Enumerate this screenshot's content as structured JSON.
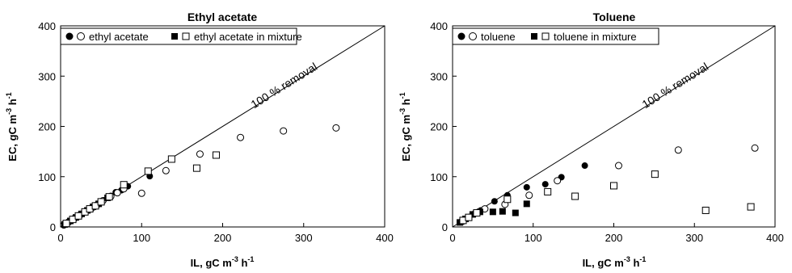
{
  "chart_data": [
    {
      "type": "scatter",
      "title": "Ethyl acetate",
      "xlabel": "IL, gC m-3 h-1",
      "ylabel": "EC, gC m-3 h-1",
      "xlim": [
        0,
        400
      ],
      "ylim": [
        0,
        400
      ],
      "xticks": [
        "0",
        "100",
        "200",
        "300",
        "400"
      ],
      "yticks": [
        "0",
        "100",
        "200",
        "300",
        "400"
      ],
      "grid": false,
      "legend_position": "top-left",
      "reference_line": {
        "label": "100 % removal",
        "x": [
          0,
          400
        ],
        "y": [
          0,
          400
        ]
      },
      "series": [
        {
          "name": "ethyl acetate",
          "marker": "filled-circle",
          "points": [
            [
              4,
              4
            ],
            [
              9,
              9
            ],
            [
              14,
              14
            ],
            [
              20,
              20
            ],
            [
              27,
              27
            ],
            [
              33,
              33
            ],
            [
              40,
              39
            ],
            [
              46,
              45
            ],
            [
              53,
              53
            ],
            [
              60,
              59
            ],
            [
              68,
              69
            ],
            [
              75,
              73
            ],
            [
              83,
              81
            ],
            [
              110,
              101
            ]
          ]
        },
        {
          "name": "ethyl acetate",
          "marker": "open-circle",
          "points": [
            [
              4,
              4
            ],
            [
              10,
              10
            ],
            [
              17,
              17
            ],
            [
              24,
              24
            ],
            [
              31,
              31
            ],
            [
              38,
              37
            ],
            [
              45,
              44
            ],
            [
              52,
              52
            ],
            [
              62,
              61
            ],
            [
              70,
              68
            ],
            [
              78,
              76
            ],
            [
              100,
              67
            ],
            [
              130,
              112
            ],
            [
              172,
              145
            ],
            [
              222,
              178
            ],
            [
              275,
              191
            ],
            [
              340,
              197
            ]
          ]
        },
        {
          "name": "ethyl acetate in mixture",
          "marker": "filled-square",
          "points": [
            [
              5,
              5
            ],
            [
              12,
              12
            ],
            [
              19,
              19
            ],
            [
              26,
              26
            ],
            [
              33,
              33
            ],
            [
              40,
              40
            ],
            [
              47,
              46
            ],
            [
              58,
              58
            ]
          ]
        },
        {
          "name": "ethyl acetate in mixture",
          "marker": "open-square",
          "points": [
            [
              7,
              7
            ],
            [
              15,
              15
            ],
            [
              22,
              22
            ],
            [
              30,
              30
            ],
            [
              36,
              36
            ],
            [
              43,
              42
            ],
            [
              50,
              50
            ],
            [
              60,
              60
            ],
            [
              78,
              84
            ],
            [
              108,
              111
            ],
            [
              137,
              135
            ],
            [
              168,
              117
            ],
            [
              192,
              143
            ]
          ]
        }
      ]
    },
    {
      "type": "scatter",
      "title": "Toluene",
      "xlabel": "IL, gC m-3 h-1",
      "ylabel": "EC, gC m-3 h-1",
      "xlim": [
        0,
        400
      ],
      "ylim": [
        0,
        400
      ],
      "xticks": [
        "0",
        "100",
        "200",
        "300",
        "400"
      ],
      "yticks": [
        "0",
        "100",
        "200",
        "300",
        "400"
      ],
      "grid": false,
      "legend_position": "top-left",
      "reference_line": {
        "label": "100 % removal",
        "x": [
          0,
          400
        ],
        "y": [
          0,
          400
        ]
      },
      "series": [
        {
          "name": "toluene",
          "marker": "filled-circle",
          "points": [
            [
              10,
              10
            ],
            [
              18,
              18
            ],
            [
              28,
              28
            ],
            [
              35,
              33
            ],
            [
              52,
              51
            ],
            [
              68,
              63
            ],
            [
              92,
              79
            ],
            [
              115,
              85
            ],
            [
              135,
              99
            ],
            [
              164,
              122
            ]
          ]
        },
        {
          "name": "toluene",
          "marker": "open-circle",
          "points": [
            [
              12,
              11
            ],
            [
              20,
              19
            ],
            [
              30,
              28
            ],
            [
              40,
              36
            ],
            [
              65,
              45
            ],
            [
              95,
              63
            ],
            [
              130,
              92
            ],
            [
              206,
              122
            ],
            [
              280,
              153
            ],
            [
              375,
              157
            ]
          ]
        },
        {
          "name": "toluene in mixture",
          "marker": "filled-square",
          "points": [
            [
              9,
              9
            ],
            [
              16,
              16
            ],
            [
              25,
              25
            ],
            [
              34,
              30
            ],
            [
              50,
              30
            ],
            [
              62,
              31
            ],
            [
              78,
              28
            ],
            [
              92,
              46
            ]
          ]
        },
        {
          "name": "toluene in mixture",
          "marker": "open-square",
          "points": [
            [
              13,
              13
            ],
            [
              20,
              19
            ],
            [
              30,
              28
            ],
            [
              68,
              55
            ],
            [
              118,
              70
            ],
            [
              152,
              61
            ],
            [
              200,
              82
            ],
            [
              251,
              105
            ],
            [
              314,
              33
            ],
            [
              370,
              40
            ]
          ]
        }
      ]
    }
  ],
  "legend": [
    {
      "entries": [
        "ethyl acetate",
        "ethyl acetate in mixture"
      ]
    },
    {
      "entries": [
        "toluene",
        "toluene in mixture"
      ]
    }
  ],
  "annotation": "100 % removal",
  "axis_label_parts": {
    "x_main": "IL, gC m",
    "x_sup1": "-3",
    "x_mid": " h",
    "x_sup2": "-1",
    "y_main": "EC, gC m",
    "y_sup1": "-3",
    "y_mid": " h",
    "y_sup2": "-1"
  }
}
